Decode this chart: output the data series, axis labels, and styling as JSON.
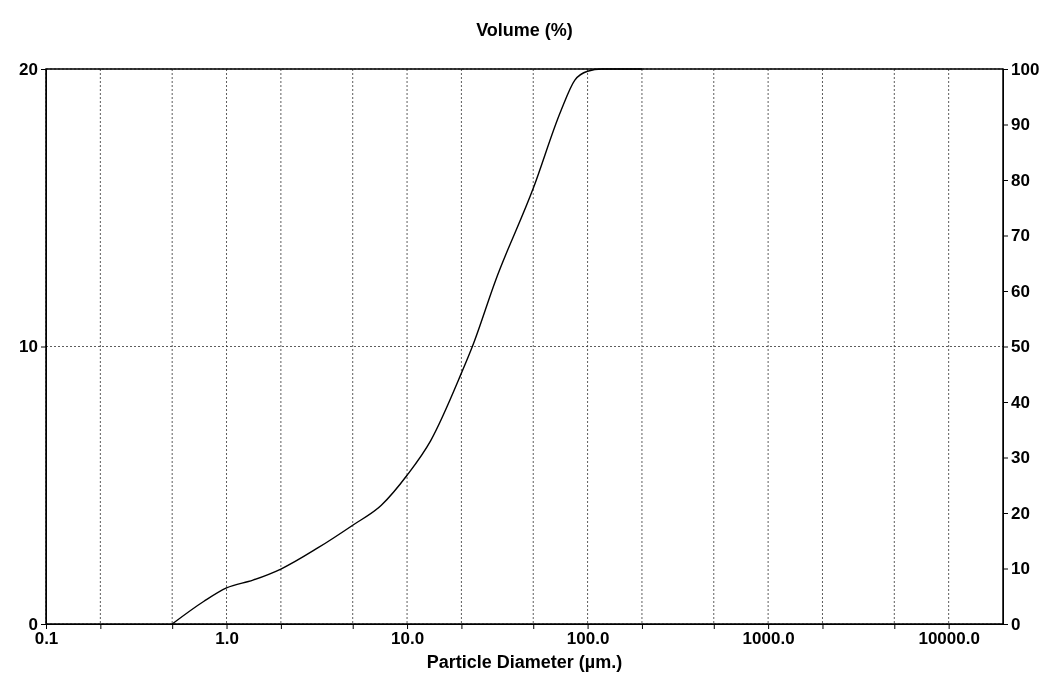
{
  "chart_data": {
    "type": "line",
    "title": "Volume (%)",
    "xlabel": "Particle Diameter (µm.)",
    "log": "x",
    "grid": true,
    "line_style": "solid",
    "xlim": [
      0.1,
      20000
    ],
    "xticks": [
      0.1,
      {
        "value": 0.2,
        "label": null
      },
      {
        "value": 0.5,
        "label": null
      },
      {
        "value": 1,
        "label": "1.0"
      },
      {
        "value": 2,
        "label": null
      },
      {
        "value": 5,
        "label": null
      },
      {
        "value": 10,
        "label": "10.0"
      },
      {
        "value": 20,
        "label": null
      },
      {
        "value": 50,
        "label": null
      },
      {
        "value": 100,
        "label": "100.0"
      },
      {
        "value": 200,
        "label": null
      },
      {
        "value": 500,
        "label": null
      },
      {
        "value": 1000,
        "label": "1000.0"
      },
      {
        "value": 2000,
        "label": null
      },
      {
        "value": 5000,
        "label": null
      },
      {
        "value": 10000,
        "label": "10000.0"
      }
    ],
    "ylim": [
      0,
      20
    ],
    "yticks": [
      0,
      10,
      20
    ],
    "y2lim": [
      0,
      100
    ],
    "y2ticks": [
      0,
      10,
      20,
      30,
      40,
      50,
      60,
      70,
      80,
      90,
      100
    ],
    "series": [
      {
        "color": "#000000",
        "axis": "y2",
        "x": [
          0.5,
          0.75,
          1,
          1.4,
          2,
          3.2,
          5,
          7.2,
          10,
          13.5,
          20,
          23,
          31,
          50,
          71,
          85,
          100,
          120,
          200
        ],
        "values": [
          0,
          4.1,
          6.5,
          7.9,
          9.9,
          13.7,
          17.8,
          21.4,
          26.8,
          33,
          45.2,
          50,
          62,
          78.5,
          92.4,
          98,
          99.6,
          100,
          100
        ]
      }
    ]
  }
}
